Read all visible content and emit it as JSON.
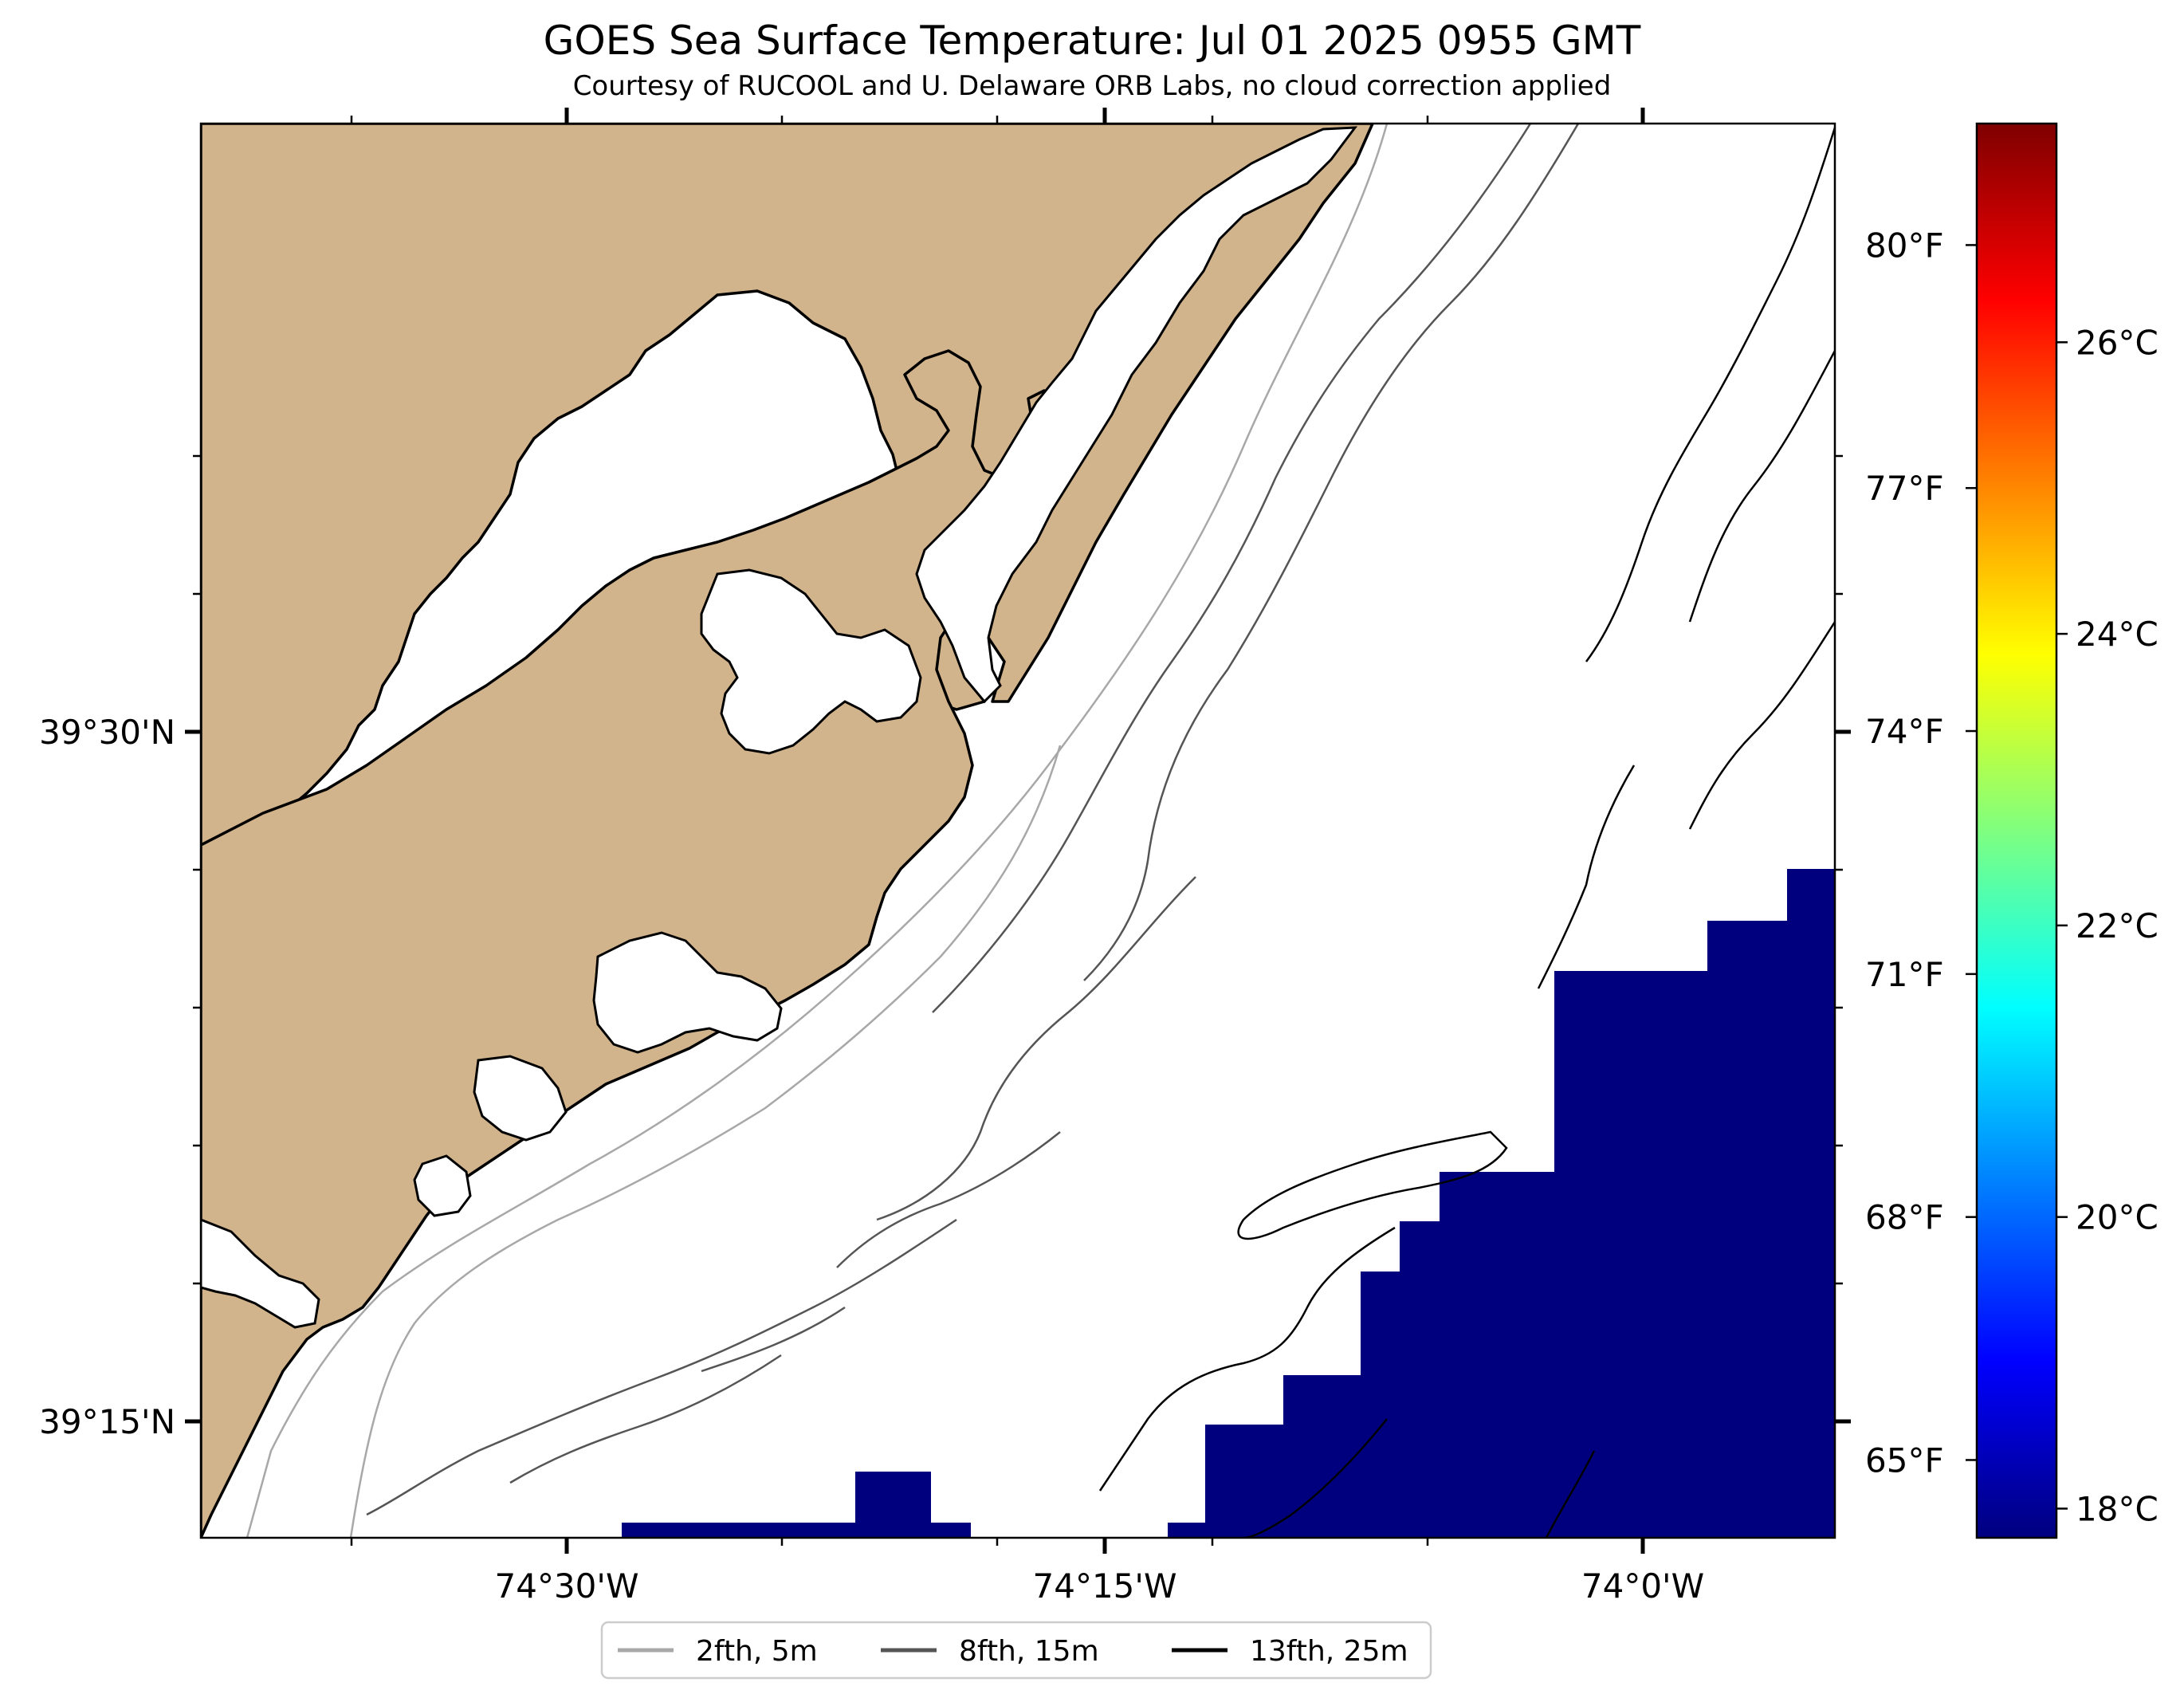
{
  "figure": {
    "title": "GOES Sea Surface Temperature: Jul 01 2025 0955 GMT",
    "subtitle": "Courtesy of RUCOOL and U. Delaware ORB Labs, no cloud correction applied"
  },
  "map": {
    "x_ticks": [
      {
        "lon": -74.5,
        "label": "74°30'W"
      },
      {
        "lon": -74.25,
        "label": "74°15'W"
      },
      {
        "lon": -74.0,
        "label": "74°0'W"
      }
    ],
    "y_ticks": [
      {
        "lat": 39.5,
        "label": "39°30'N"
      },
      {
        "lat": 39.25,
        "label": "39°15'N"
      }
    ],
    "land_color": "#D2B48C",
    "sst_patch_color": "#00007F",
    "sst_patch_value_c": 18
  },
  "legend": {
    "items": [
      {
        "label": "2fth, 5m",
        "color": "#a8a8a8"
      },
      {
        "label": "8fth, 15m",
        "color": "#555555"
      },
      {
        "label": "13fth, 25m",
        "color": "#000000"
      }
    ]
  },
  "colorbar": {
    "range_c": [
      17.8,
      27.5
    ],
    "celsius_ticks": [
      {
        "value": 18,
        "label": "18°C"
      },
      {
        "value": 20,
        "label": "20°C"
      },
      {
        "value": 22,
        "label": "22°C"
      },
      {
        "value": 24,
        "label": "24°C"
      },
      {
        "value": 26,
        "label": "26°C"
      }
    ],
    "fahrenheit_ticks": [
      {
        "value": 65,
        "label": "65°F"
      },
      {
        "value": 68,
        "label": "68°F"
      },
      {
        "value": 71,
        "label": "71°F"
      },
      {
        "value": 74,
        "label": "74°F"
      },
      {
        "value": 77,
        "label": "77°F"
      },
      {
        "value": 80,
        "label": "80°F"
      }
    ],
    "colormap": [
      "#00007F",
      "#0000FF",
      "#007FFF",
      "#00FFFF",
      "#7FFF7F",
      "#FFFF00",
      "#FF7F00",
      "#FF0000",
      "#7F0000"
    ]
  }
}
